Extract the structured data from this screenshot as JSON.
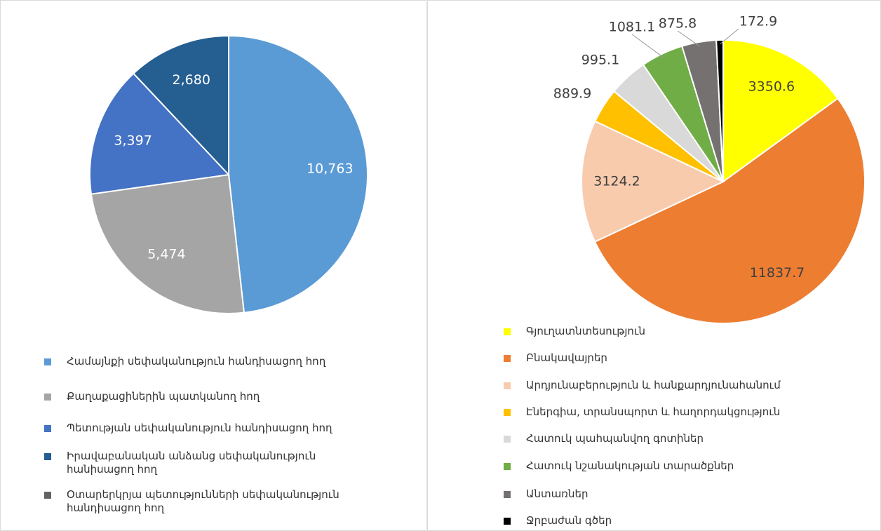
{
  "chart_data": [
    {
      "type": "pie",
      "categories": [
        "Համայնքի սեփականություն հանդիսացող հող",
        "Քաղաքացիներին պատկանող հող",
        "Պետության սեփականություն հանդիսացող հող",
        "Իրավաբանական անձանց սեփականություն հանիսացող հող",
        "Օտարերկրյա պետությունների սեփականություն հանդիսացող հող"
      ],
      "values": [
        10763,
        5474,
        3397,
        2680,
        0
      ],
      "value_labels": [
        "10,763",
        "5,474",
        "3,397",
        "2,680",
        null
      ],
      "colors": [
        "#5b9bd5",
        "#a5a5a5",
        "#4472c4",
        "#255e91",
        "#636363"
      ]
    },
    {
      "type": "pie",
      "categories": [
        "Գյուղատնտեսություն",
        "Բնակավայրեր",
        "Արդյունաբերություն և հանքարդյունահանում",
        "Էներգիա, տրանսպորտ և հաղորդակցություն",
        "Հատուկ պահպանվող գոտիներ",
        "Հատուկ նշանակության տարածքներ",
        "Անտառներ",
        "Ջրբաժան գծեր"
      ],
      "values": [
        3350.6,
        11837.7,
        3124.2,
        889.9,
        995.1,
        1081.1,
        875.8,
        172.9
      ],
      "colors": [
        "#ffff00",
        "#ed7d31",
        "#f8cbad",
        "#ffc000",
        "#d9d9d9",
        "#70ad47",
        "#767171",
        "#000000"
      ]
    }
  ]
}
